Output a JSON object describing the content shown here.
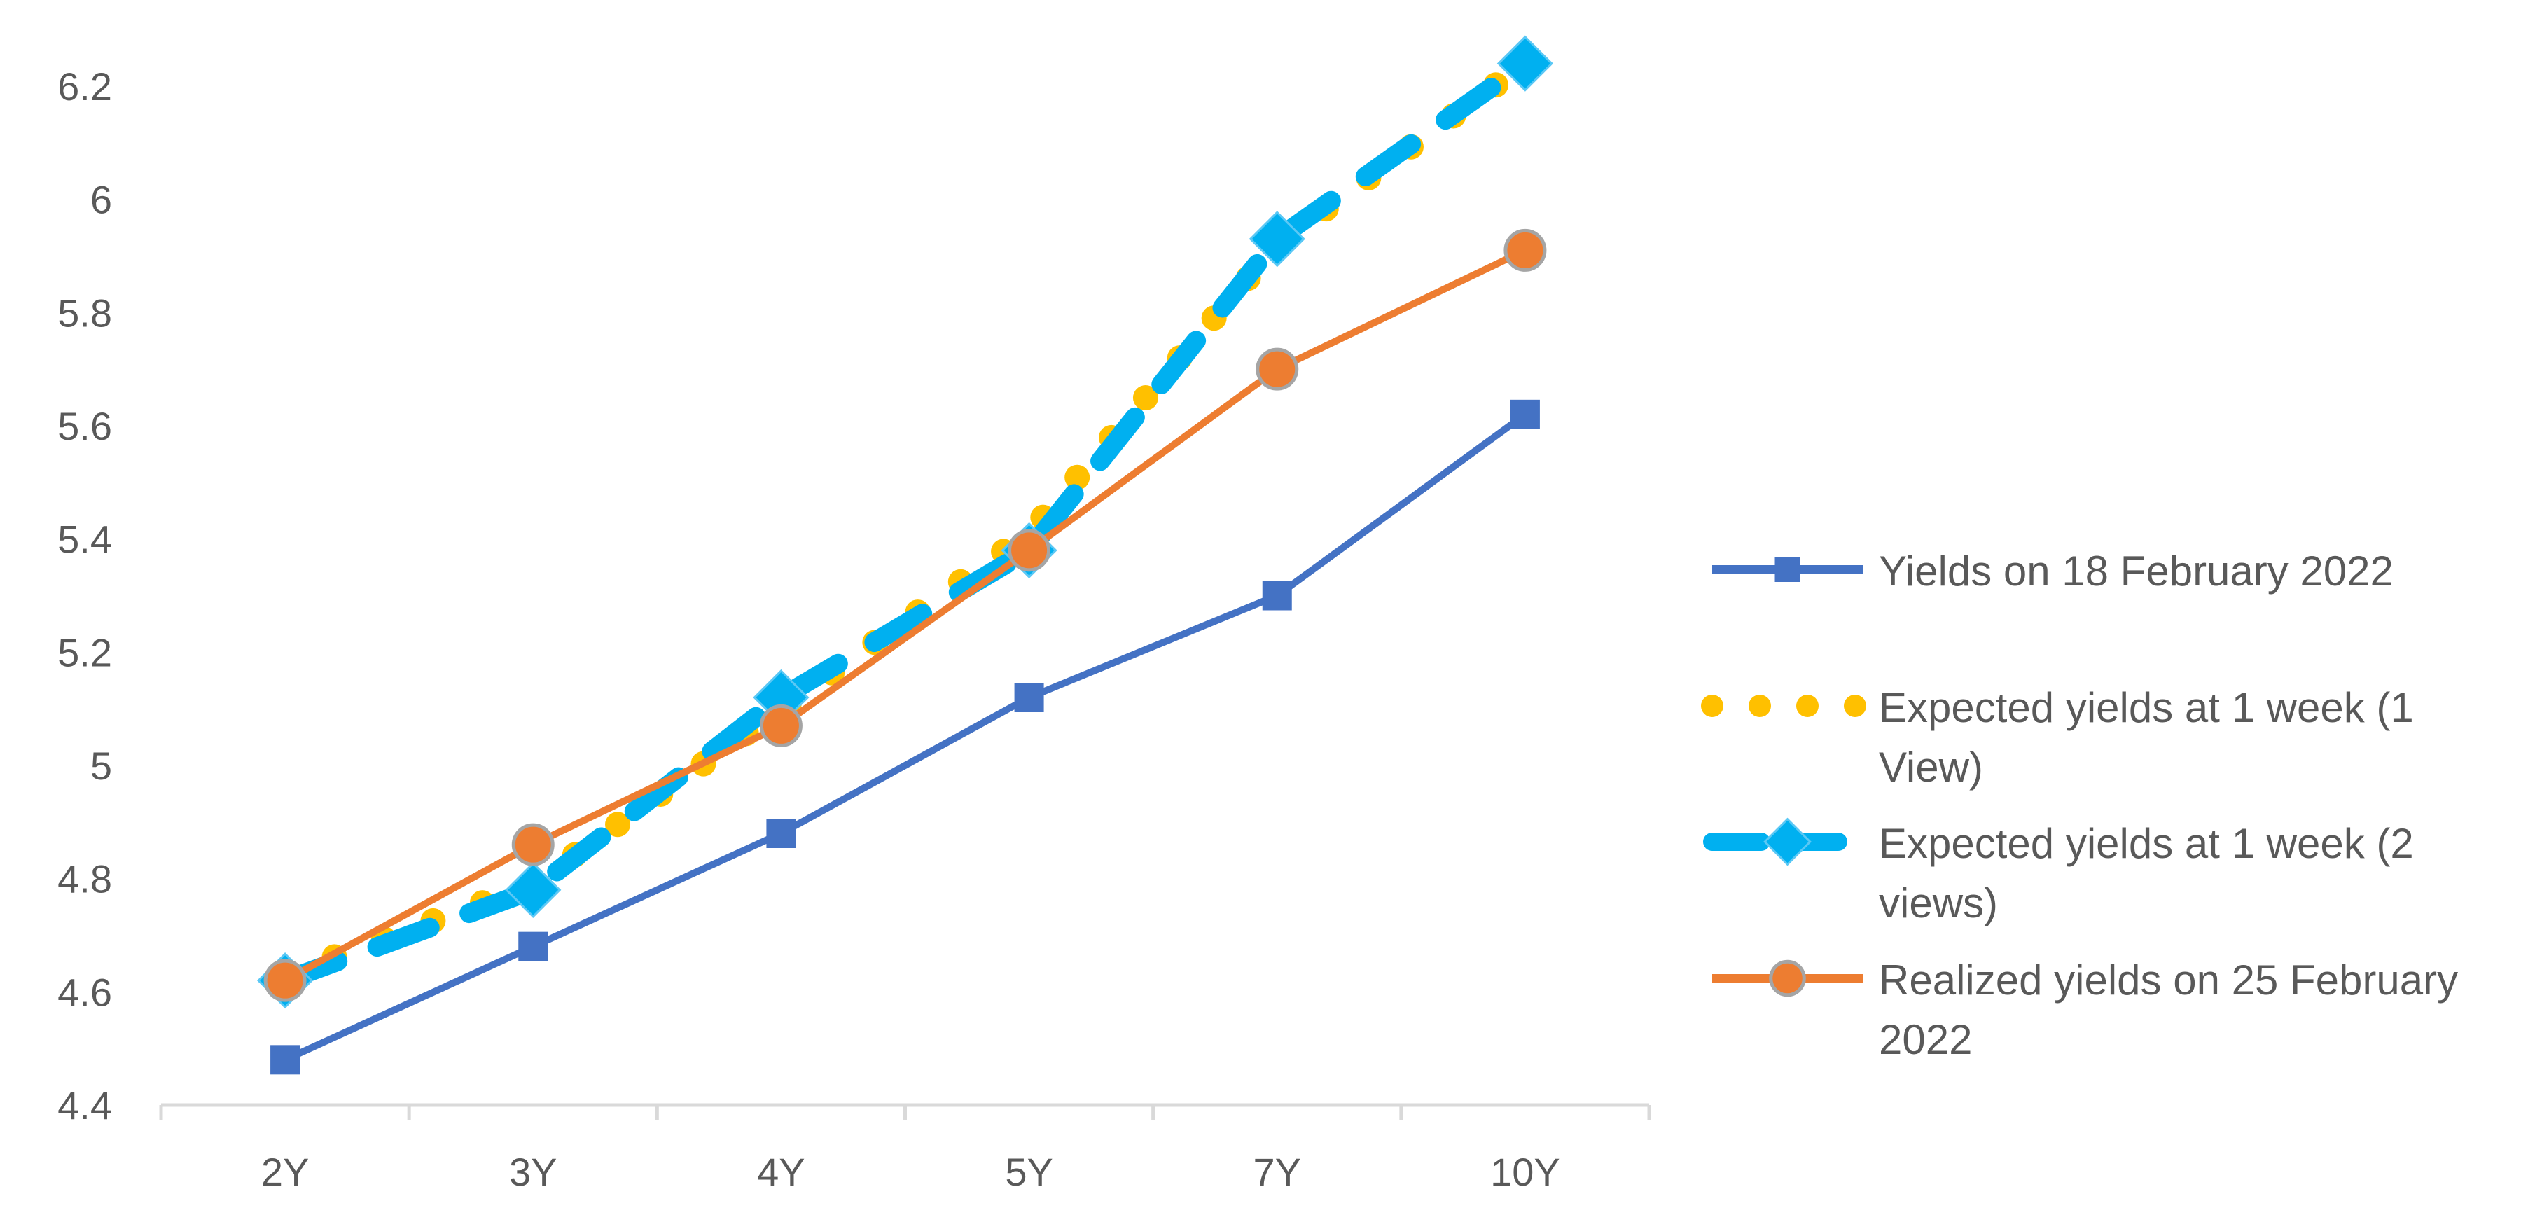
{
  "chart_data": {
    "type": "line",
    "title": "",
    "xlabel": "",
    "ylabel": "",
    "categories": [
      "2Y",
      "3Y",
      "4Y",
      "5Y",
      "7Y",
      "10Y"
    ],
    "ylim": [
      4.4,
      6.2
    ],
    "yticks": [
      "4.4",
      "4.6",
      "4.8",
      "5",
      "5.2",
      "5.4",
      "5.6",
      "5.8",
      "6",
      "6.2"
    ],
    "grid": false,
    "legend_position": "right",
    "series": [
      {
        "name": "Yields on 18 February 2022",
        "legend_lines": [
          "Yields on 18 February 2022"
        ],
        "values": [
          4.48,
          4.68,
          4.88,
          5.12,
          5.3,
          5.62
        ],
        "color": "#4472C4",
        "line_style": "solid",
        "marker": "square"
      },
      {
        "name": "Expected yields at 1 week (1 View)",
        "legend_lines": [
          "Expected yields at 1 week (1",
          "View)"
        ],
        "values": [
          4.63,
          4.79,
          5.1,
          5.41,
          5.92,
          6.24
        ],
        "color": "#FFC000",
        "line_style": "dotted",
        "marker": "none"
      },
      {
        "name": "Expected yields at 1 week (2 views)",
        "legend_lines": [
          "Expected yields at 1 week (2",
          "views)"
        ],
        "values": [
          4.62,
          4.78,
          5.12,
          5.38,
          5.93,
          6.24
        ],
        "color": "#00B0F0",
        "line_style": "dashed",
        "marker": "diamond"
      },
      {
        "name": "Realized yields on 25 February 2022",
        "legend_lines": [
          "Realized yields on 25 February",
          "2022"
        ],
        "values": [
          4.62,
          4.86,
          5.07,
          5.38,
          5.7,
          5.91
        ],
        "color": "#ED7D31",
        "line_style": "solid",
        "marker": "circle"
      }
    ]
  }
}
